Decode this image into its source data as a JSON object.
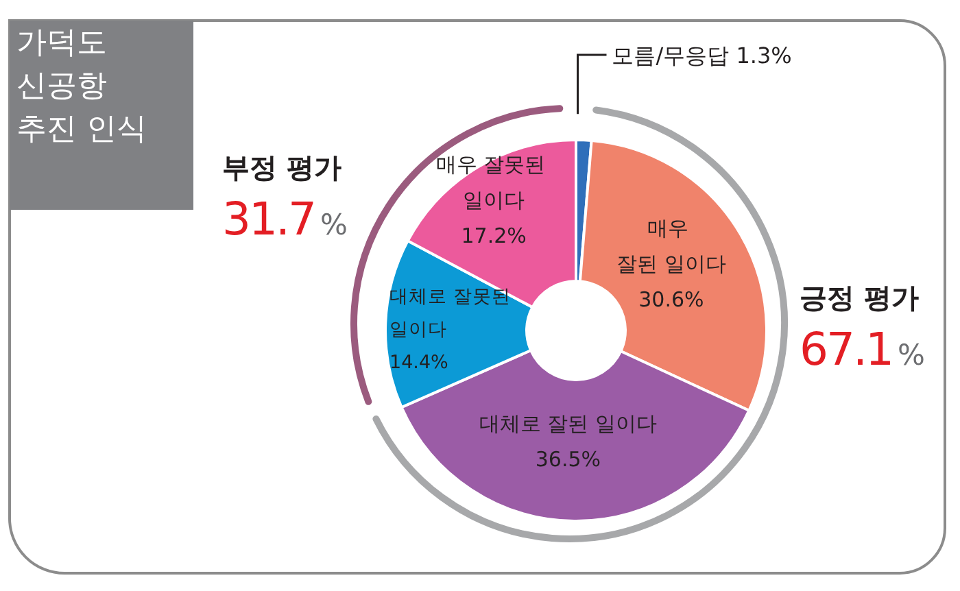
{
  "chart_data": {
    "type": "donut",
    "title": "가덕도 신공항 추진 인식",
    "categories": [
      "모름/무응답",
      "매우 잘된 일이다",
      "대체로 잘된 일이다",
      "대체로 잘못된 일이다",
      "매우 잘못된 일이다"
    ],
    "values": [
      1.3,
      30.6,
      36.5,
      14.4,
      17.2
    ],
    "colors": [
      "#2f6fba",
      "#f0836b",
      "#9b5ca6",
      "#0c9ad6",
      "#ec5a9c"
    ],
    "value_labels": [
      "1.3%",
      "30.6%",
      "36.5%",
      "14.4%",
      "17.2%"
    ],
    "annotations": [
      "부정 평가 31.7%",
      "긍정 평가 67.1%"
    ]
  }
}
